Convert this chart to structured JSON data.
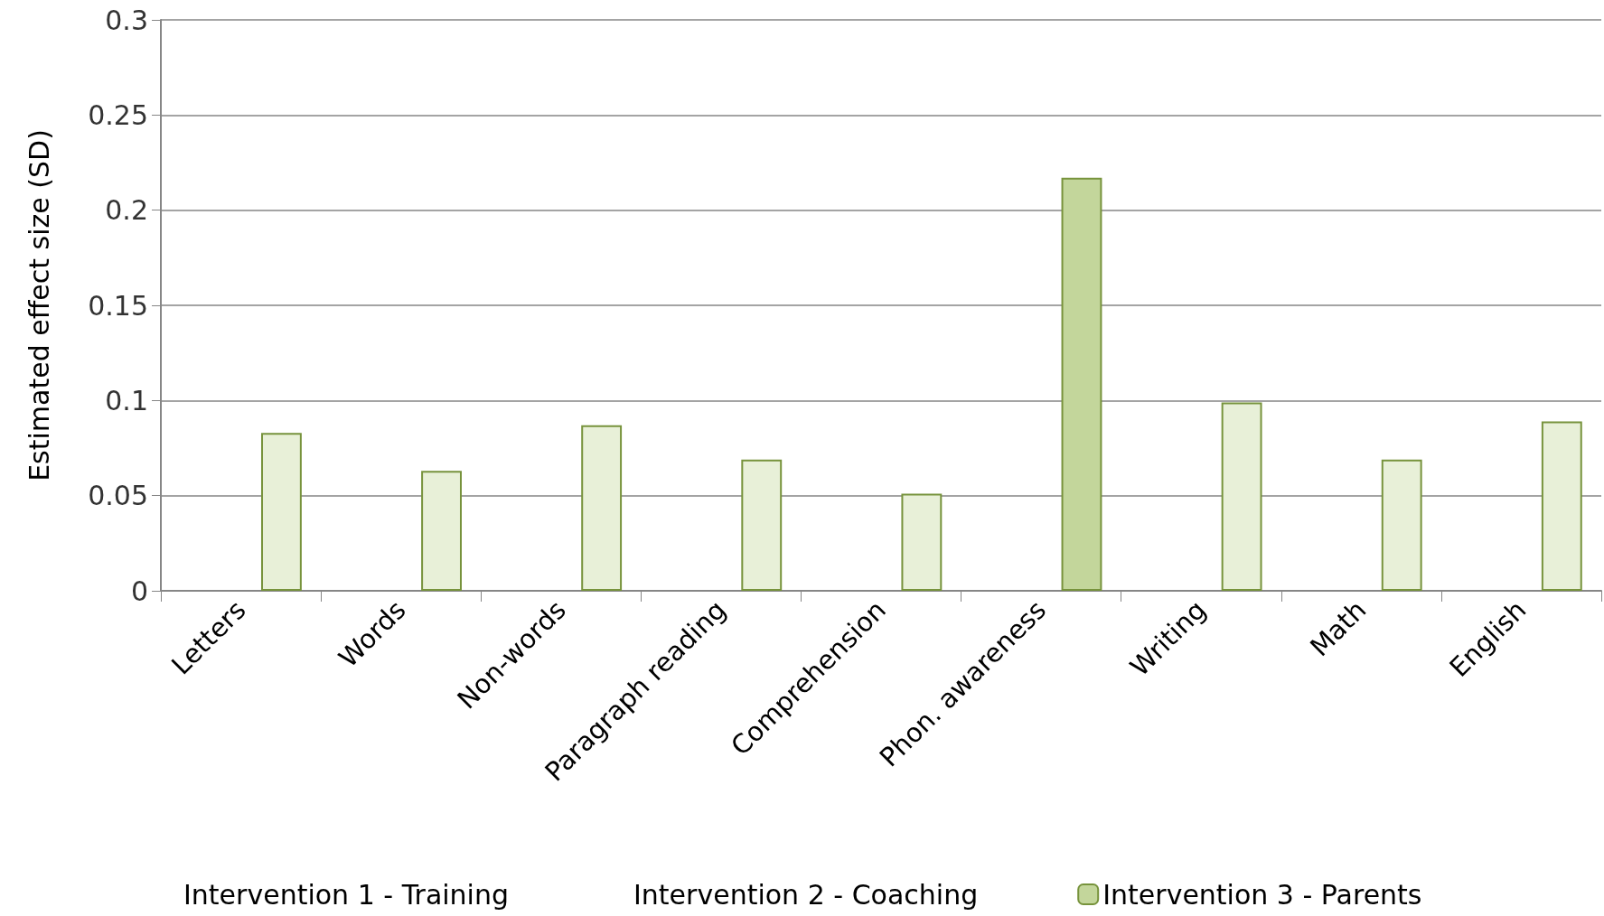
{
  "chart_data": {
    "type": "bar",
    "ylabel": "Estimated effect size (SD)",
    "categories": [
      "Letters",
      "Words",
      "Non-words",
      "Paragraph reading",
      "Comprehension",
      "Phon. awareness",
      "Writing",
      "Math",
      "English"
    ],
    "series": [
      {
        "name": "Intervention 1 - Training",
        "values": [
          null,
          null,
          null,
          null,
          null,
          null,
          null,
          null,
          null
        ]
      },
      {
        "name": "Intervention 2 - Coaching",
        "values": [
          null,
          null,
          null,
          null,
          null,
          null,
          null,
          null,
          null
        ]
      },
      {
        "name": "Intervention 3 - Parents",
        "color": "#c3d69b",
        "colors": [
          "#e8f0d8",
          "#e8f0d8",
          "#e8f0d8",
          "#e8f0d8",
          "#e8f0d8",
          "#c3d69b",
          "#e8f0d8",
          "#e8f0d8",
          "#e8f0d8"
        ],
        "values": [
          0.083,
          0.063,
          0.087,
          0.069,
          0.051,
          0.217,
          0.099,
          0.069,
          0.089
        ]
      }
    ],
    "ylim": [
      0,
      0.3
    ],
    "yticks": [
      0,
      0.05,
      0.1,
      0.15,
      0.2,
      0.25,
      0.3
    ],
    "grid": "y",
    "legend": "bottom"
  }
}
